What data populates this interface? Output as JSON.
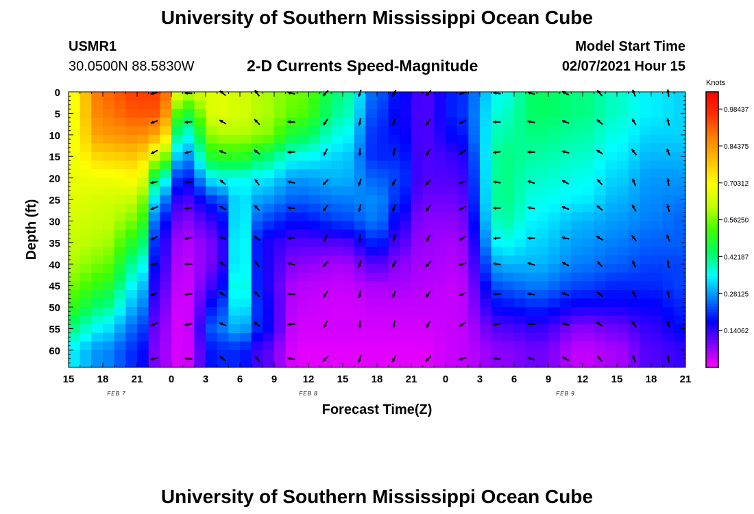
{
  "header": {
    "title": "University of Southern Mississippi Ocean Cube",
    "station_id": "USMR1",
    "station_location": "30.0500N 88.5830W",
    "subtitle": "2-D Currents Speed-Magnitude",
    "model_start_label": "Model Start Time",
    "model_start_value": "02/07/2021 Hour 15"
  },
  "footer": {
    "title": "University of Southern Mississippi Ocean Cube"
  },
  "colors": {
    "arrow": "#000000",
    "colorbar_border": "#000000",
    "colormap": [
      "#ff00ff",
      "#8000ff",
      "#0000ff",
      "#0080ff",
      "#00ffff",
      "#00ff60",
      "#40ff00",
      "#c0ff00",
      "#ffff00",
      "#ffc000",
      "#ff8000",
      "#ff3000",
      "#ff0000"
    ]
  },
  "chart_data": {
    "type": "heatmap",
    "title": "2-D Currents Speed-Magnitude",
    "xlabel": "Forecast Time(Z)",
    "ylabel": "Depth (ft)",
    "x_ticks": [
      "15",
      "18",
      "21",
      "0",
      "3",
      "6",
      "9",
      "12",
      "15",
      "18",
      "21",
      "0",
      "3",
      "6",
      "9",
      "12",
      "15",
      "18",
      "21"
    ],
    "date_labels": [
      {
        "text": "FEB 7",
        "hour_index": 1.4
      },
      {
        "text": "FEB 8",
        "hour_index": 7.0
      },
      {
        "text": "FEB 9",
        "hour_index": 14.5
      }
    ],
    "x_range_hours": [
      0,
      54
    ],
    "y_ticks": [
      0,
      5,
      10,
      15,
      20,
      25,
      30,
      35,
      40,
      45,
      50,
      55,
      60
    ],
    "ylim": [
      0,
      64
    ],
    "y_inverted": true,
    "colorbar": {
      "label": "Knots",
      "range": [
        0,
        1.05
      ],
      "ticks": [
        "0.98437",
        "0.84375",
        "0.70312",
        "0.56250",
        "0.42187",
        "0.28125",
        "0.14062"
      ],
      "tick_values": [
        0.98437,
        0.84375,
        0.70312,
        0.5625,
        0.42187,
        0.28125,
        0.14062
      ]
    },
    "speed_profile_knots": [
      {
        "hour": 0,
        "speed": [
          0.68,
          0.68,
          0.68,
          0.68,
          0.67,
          0.66,
          0.64,
          0.62,
          0.6,
          0.56,
          0.5,
          0.42,
          0.34
        ]
      },
      {
        "hour": 3,
        "speed": [
          0.9,
          0.88,
          0.84,
          0.76,
          0.68,
          0.64,
          0.62,
          0.6,
          0.56,
          0.5,
          0.42,
          0.34,
          0.27
        ]
      },
      {
        "hour": 6,
        "speed": [
          0.95,
          0.92,
          0.86,
          0.78,
          0.7,
          0.62,
          0.56,
          0.48,
          0.4,
          0.34,
          0.29,
          0.24,
          0.2
        ]
      },
      {
        "hour": 8,
        "speed": [
          0.95,
          0.92,
          0.82,
          0.62,
          0.4,
          0.28,
          0.2,
          0.16,
          0.14,
          0.12,
          0.1,
          0.08,
          0.07
        ]
      },
      {
        "hour": 10,
        "speed": [
          0.62,
          0.46,
          0.34,
          0.26,
          0.18,
          0.12,
          0.08,
          0.05,
          0.04,
          0.03,
          0.02,
          0.02,
          0.02
        ]
      },
      {
        "hour": 13,
        "speed": [
          0.66,
          0.66,
          0.6,
          0.5,
          0.36,
          0.22,
          0.14,
          0.1,
          0.1,
          0.14,
          0.2,
          0.25,
          0.2
        ]
      },
      {
        "hour": 15,
        "speed": [
          0.64,
          0.64,
          0.6,
          0.5,
          0.36,
          0.34,
          0.36,
          0.38,
          0.38,
          0.4,
          0.36,
          0.3,
          0.2
        ]
      },
      {
        "hour": 17,
        "speed": [
          0.6,
          0.6,
          0.58,
          0.44,
          0.34,
          0.28,
          0.22,
          0.16,
          0.16,
          0.16,
          0.18,
          0.18,
          0.12
        ]
      },
      {
        "hour": 20,
        "speed": [
          0.56,
          0.54,
          0.46,
          0.36,
          0.28,
          0.24,
          0.18,
          0.12,
          0.08,
          0.05,
          0.04,
          0.03,
          0.02
        ]
      },
      {
        "hour": 24,
        "speed": [
          0.42,
          0.4,
          0.36,
          0.32,
          0.3,
          0.26,
          0.22,
          0.12,
          0.06,
          0.04,
          0.03,
          0.03,
          0.02
        ]
      },
      {
        "hour": 27,
        "speed": [
          0.24,
          0.22,
          0.2,
          0.2,
          0.24,
          0.27,
          0.26,
          0.2,
          0.12,
          0.06,
          0.04,
          0.03,
          0.02
        ]
      },
      {
        "hour": 29,
        "speed": [
          0.18,
          0.17,
          0.18,
          0.2,
          0.22,
          0.2,
          0.16,
          0.12,
          0.08,
          0.06,
          0.04,
          0.03,
          0.02
        ]
      },
      {
        "hour": 31,
        "speed": [
          0.12,
          0.12,
          0.12,
          0.12,
          0.12,
          0.1,
          0.08,
          0.07,
          0.06,
          0.05,
          0.04,
          0.03,
          0.02
        ]
      },
      {
        "hour": 34,
        "speed": [
          0.2,
          0.2,
          0.18,
          0.14,
          0.12,
          0.1,
          0.08,
          0.06,
          0.05,
          0.04,
          0.04,
          0.04,
          0.04
        ]
      },
      {
        "hour": 38,
        "speed": [
          0.36,
          0.38,
          0.4,
          0.42,
          0.42,
          0.42,
          0.4,
          0.36,
          0.3,
          0.24,
          0.18,
          0.12,
          0.08
        ]
      },
      {
        "hour": 41,
        "speed": [
          0.44,
          0.44,
          0.42,
          0.4,
          0.38,
          0.36,
          0.34,
          0.32,
          0.3,
          0.26,
          0.2,
          0.14,
          0.1
        ]
      },
      {
        "hour": 45,
        "speed": [
          0.42,
          0.42,
          0.4,
          0.38,
          0.36,
          0.34,
          0.3,
          0.28,
          0.26,
          0.22,
          0.16,
          0.08,
          0.04
        ]
      },
      {
        "hour": 48,
        "speed": [
          0.38,
          0.38,
          0.36,
          0.34,
          0.32,
          0.3,
          0.28,
          0.26,
          0.24,
          0.2,
          0.16,
          0.1,
          0.06
        ]
      },
      {
        "hour": 51,
        "speed": [
          0.34,
          0.34,
          0.32,
          0.3,
          0.28,
          0.27,
          0.26,
          0.24,
          0.22,
          0.2,
          0.17,
          0.14,
          0.12
        ]
      },
      {
        "hour": 54,
        "speed": [
          0.32,
          0.32,
          0.32,
          0.3,
          0.28,
          0.26,
          0.24,
          0.24,
          0.22,
          0.22,
          0.2,
          0.18,
          0.14
        ]
      }
    ],
    "vector_depths_ft": [
      0,
      7,
      14,
      21,
      27,
      34,
      40,
      47,
      54,
      62
    ],
    "vector_hours": [
      7.5,
      10.5,
      13.5,
      16.5,
      19.5,
      22.5,
      25.5,
      28.5,
      31.5,
      34.5,
      37.5,
      40.5,
      43.5,
      46.5,
      49.5,
      52.5
    ],
    "vector_direction_deg_by_column": [
      200,
      185,
      150,
      135,
      175,
      235,
      260,
      250,
      235,
      205,
      180,
      170,
      160,
      140,
      120,
      105
    ],
    "vector_direction_note": "direction of current flow (0 = east, 90 = north); arrows shown on a regular grid"
  }
}
